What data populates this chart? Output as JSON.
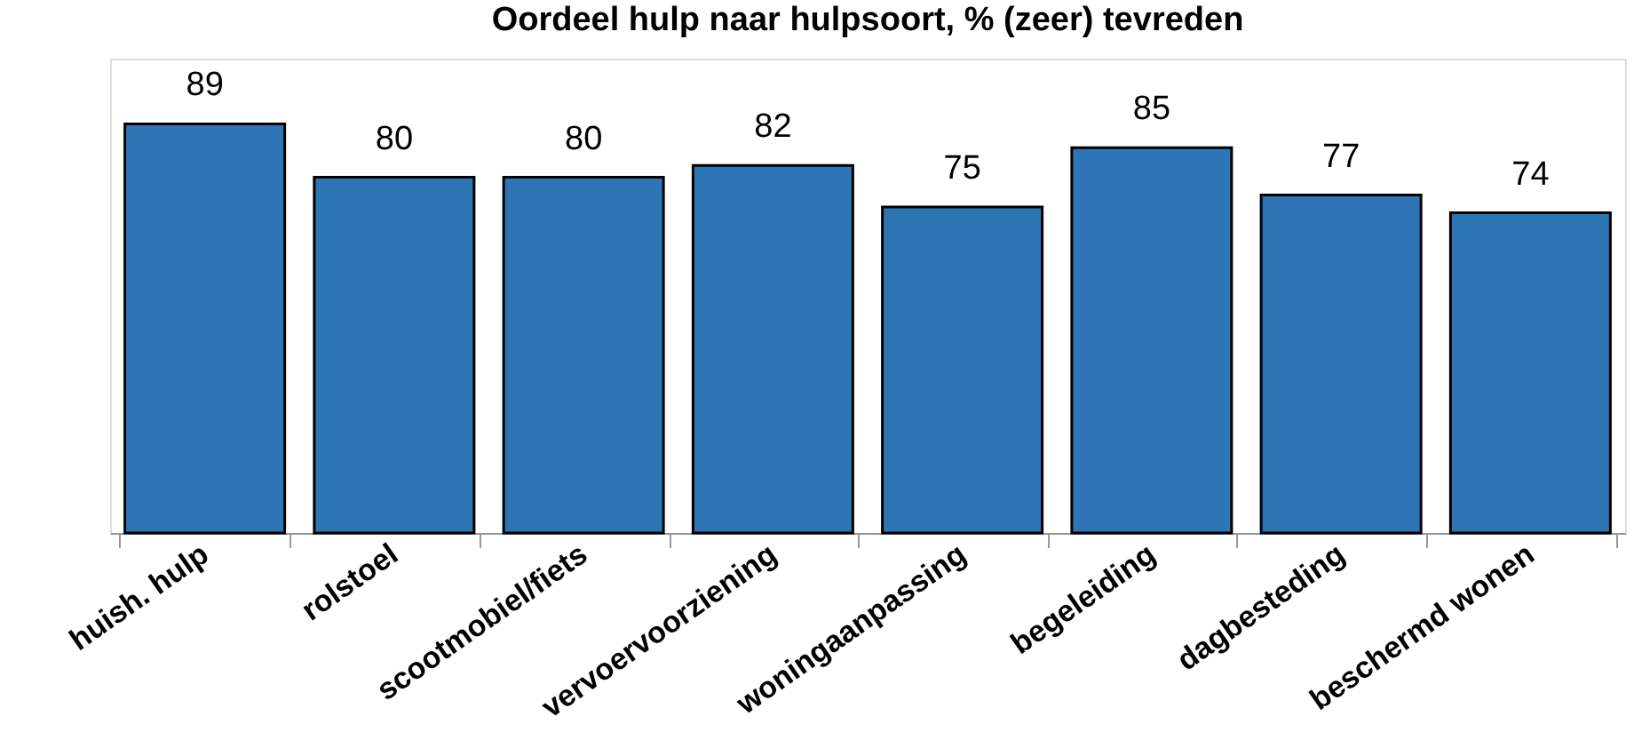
{
  "chart_data": {
    "type": "bar",
    "title": "Oordeel hulp naar hulpsoort, % (zeer) tevreden",
    "categories": [
      "huish. hulp",
      "rolstoel",
      "scootmobiel/fiets",
      "vervoervoorziening",
      "woningaanpassing",
      "begeleiding",
      "dagbesteding",
      "beschermd wonen"
    ],
    "values": [
      89,
      80,
      80,
      82,
      75,
      85,
      77,
      74
    ],
    "color": "#2e75b6",
    "ylim": [
      20,
      100
    ],
    "data_labels": true,
    "grid": false,
    "tick_labels": "x"
  }
}
